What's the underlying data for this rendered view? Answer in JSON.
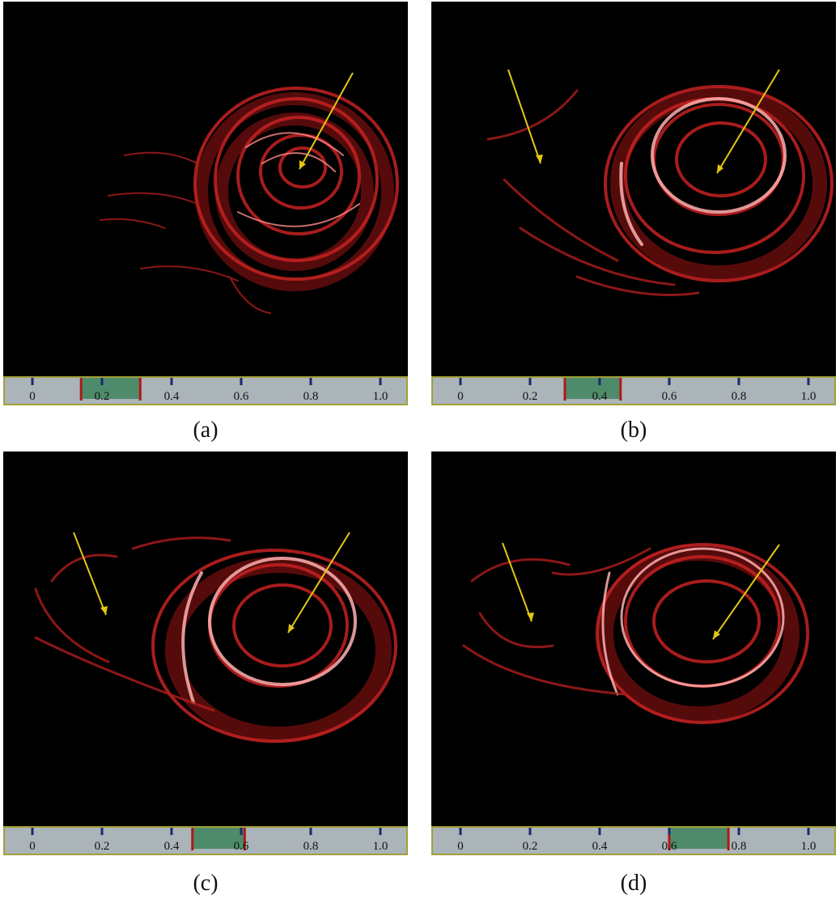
{
  "panels": [
    {
      "id": "a",
      "caption": "(a)",
      "selection": [
        0.14,
        0.31
      ]
    },
    {
      "id": "b",
      "caption": "(b)",
      "selection": [
        0.3,
        0.46
      ]
    },
    {
      "id": "c",
      "caption": "(c)",
      "selection": [
        0.46,
        0.61
      ]
    },
    {
      "id": "d",
      "caption": "(d)",
      "selection": [
        0.6,
        0.77
      ]
    }
  ],
  "axis": {
    "min": 0,
    "max": 1.0,
    "ticks": [
      "0",
      "0.2",
      "0.4",
      "0.6",
      "0.8",
      "1.0"
    ]
  },
  "colors": {
    "background": "#000000",
    "streamline": "#d42a2a",
    "highlight": "#ff9a9a",
    "arrow": "#e2c814",
    "bar": "#aab4b9",
    "bar_border": "#a3a03a",
    "selection_fill": "#4e8b6b",
    "selection_edge": "#b01818",
    "tick_mark": "#1a2a6e"
  }
}
